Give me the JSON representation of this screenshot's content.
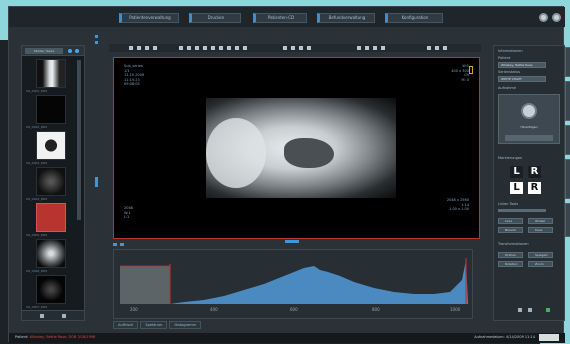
{
  "menu": {
    "tabs": [
      "Patientenverwaltung",
      "Drucken",
      "Patienten-CD",
      "Befundverwaltung",
      "Konfiguration"
    ]
  },
  "thumbnails": {
    "header_label": "Studie / Serie",
    "items": [
      {
        "label": "CR_0001_DRS",
        "kind": "bright",
        "selected": false
      },
      {
        "label": "CR_0002_DRS",
        "kind": "dark",
        "selected": false
      },
      {
        "label": "CR_0003_DRS",
        "kind": "device",
        "selected": false
      },
      {
        "label": "CR_0004_DRS",
        "kind": "dim",
        "selected": false
      },
      {
        "label": "CR_0005_DRS",
        "kind": "red",
        "selected": true
      },
      {
        "label": "CR_0006_DRS",
        "kind": "scan",
        "selected": false
      },
      {
        "label": "CR_0007_DRS",
        "kind": "dark",
        "selected": false
      }
    ]
  },
  "viewer": {
    "overlay_top_left": [
      "Sub_series",
      "1/1",
      "11.10.2009",
      "11:15:23",
      "09:08:05"
    ],
    "overlay_top_right": [
      "W:1",
      "400 x 300",
      "CR",
      "M: 0"
    ],
    "overlay_bottom_left": [
      "2048",
      "W:1",
      "L:1"
    ],
    "overlay_bottom_right": [
      "2048 x 2560",
      "1:14",
      "1.00 x 1.00"
    ]
  },
  "histogram": {
    "tick_labels": [
      "200",
      "400",
      "600",
      "800",
      "1000"
    ],
    "tabs": [
      "Auffrisch",
      "Spektrum",
      "Histogramm"
    ],
    "colors": {
      "curve": "#4a8ac0",
      "window": "#c0302e"
    }
  },
  "right_panel": {
    "section_info": "Informationen",
    "label_patient": "Patient",
    "field_patient": "Whiskey, Bettie Rose",
    "label_series": "Serienstatus",
    "field_series": "WHITE CHAPT",
    "label_quick": "Aufnahme",
    "quick_button": "Hinzufügen",
    "section_markers": "Markierungen",
    "markers": [
      "L",
      "R",
      "L",
      "R"
    ],
    "section_lines": "Linien Tools",
    "line_buttons": [
      "Linie",
      "Winkel",
      "Bereich",
      "Kreis"
    ],
    "section_transform": "Transformationen",
    "transform_buttons": [
      "Drehen",
      "Spiegeln",
      "Rotation",
      "Zoom"
    ]
  },
  "side_tabs": [
    "Bildbearbeitung",
    "Messungen",
    "Kommentare",
    "Mess-Tools",
    "Extras"
  ],
  "status": {
    "left_label": "Patient:",
    "left_value": "Whiskey, Bettie Rose, DOB 3/18/1998",
    "right_text": "Aufnahmedatum: 4/14/2009 11:14"
  }
}
